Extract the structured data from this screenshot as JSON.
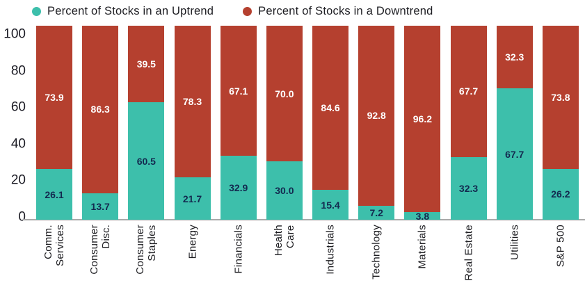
{
  "legend": [
    {
      "label": "Percent of Stocks in an Uptrend",
      "color": "#3DBFAB"
    },
    {
      "label": "Percent of Stocks in a Downtrend",
      "color": "#B5402F"
    }
  ],
  "colors": {
    "uptrend": "#3DBFAB",
    "downtrend": "#B5402F",
    "uptrend_value_label": "#13294F",
    "downtrend_value_label": "#FFFFFF",
    "axis_text": "#1B1B24",
    "baseline": "#A9A9A9"
  },
  "chart_data": {
    "type": "bar",
    "stacked": true,
    "grid": false,
    "legend_position": "top",
    "categories": [
      "Comm.\nServices",
      "Consumer\nDisc.",
      "Consumer\nStaples",
      "Energy",
      "Financials",
      "Health\nCare",
      "Industrials",
      "Technology",
      "Materials",
      "Real Estate",
      "Utilities",
      "S&P 500"
    ],
    "series": [
      {
        "name": "Percent of Stocks in an Uptrend",
        "color": "#3DBFAB",
        "label_color": "#13294F",
        "values": [
          26.1,
          13.7,
          60.5,
          21.7,
          32.9,
          30.0,
          15.4,
          7.2,
          3.8,
          32.3,
          67.7,
          26.2
        ]
      },
      {
        "name": "Percent of Stocks in a Downtrend",
        "color": "#B5402F",
        "label_color": "#FFFFFF",
        "values": [
          73.9,
          86.3,
          39.5,
          78.3,
          67.1,
          70.0,
          84.6,
          92.8,
          96.2,
          67.7,
          32.3,
          73.8
        ]
      }
    ],
    "y_axis": {
      "min": 0,
      "max": 100,
      "ticks": [
        "100",
        "80",
        "60",
        "40",
        "20",
        "0"
      ]
    },
    "value_label_decimals": 1
  }
}
